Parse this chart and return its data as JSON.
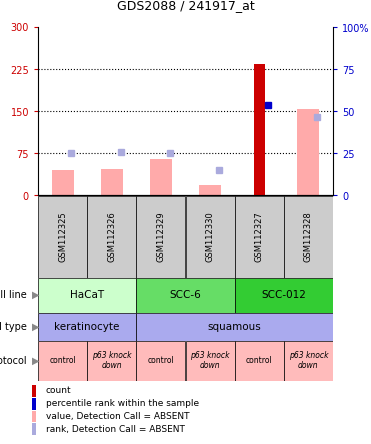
{
  "title": "GDS2088 / 241917_at",
  "samples": [
    "GSM112325",
    "GSM112326",
    "GSM112329",
    "GSM112330",
    "GSM112327",
    "GSM112328"
  ],
  "bar_values_pink": [
    45,
    48,
    65,
    18,
    0,
    155
  ],
  "bar_values_red": [
    0,
    0,
    0,
    0,
    235,
    0
  ],
  "rank_blue_absent": [
    75,
    77,
    75,
    45,
    0,
    140
  ],
  "rank_blue_present": [
    0,
    0,
    0,
    0,
    162,
    0
  ],
  "color_red": "#cc0000",
  "color_pink": "#ffaaaa",
  "color_blue_dark": "#0000cc",
  "color_blue_light": "#aaaadd",
  "label_color_left": "#cc0000",
  "label_color_right": "#0000cc",
  "cell_line_data": [
    {
      "label": "HaCaT",
      "start": 0,
      "end": 2,
      "color": "#ccffcc"
    },
    {
      "label": "SCC-6",
      "start": 2,
      "end": 4,
      "color": "#66dd66"
    },
    {
      "label": "SCC-012",
      "start": 4,
      "end": 6,
      "color": "#33cc33"
    }
  ],
  "cell_type_data": [
    {
      "label": "keratinocyte",
      "start": 0,
      "end": 2,
      "color": "#aaaaee"
    },
    {
      "label": "squamous",
      "start": 2,
      "end": 6,
      "color": "#aaaaee"
    }
  ],
  "protocol_labels": [
    "control",
    "p63 knock\ndown",
    "control",
    "p63 knock\ndown",
    "control",
    "p63 knock\ndown"
  ],
  "protocol_color": "#ffbbbb",
  "sample_bg_color": "#cccccc",
  "legend_items": [
    {
      "color": "#cc0000",
      "label": "count"
    },
    {
      "color": "#0000cc",
      "label": "percentile rank within the sample"
    },
    {
      "color": "#ffaaaa",
      "label": "value, Detection Call = ABSENT"
    },
    {
      "color": "#aaaadd",
      "label": "rank, Detection Call = ABSENT"
    }
  ],
  "fig_width": 3.71,
  "fig_height": 4.44,
  "dpi": 100
}
